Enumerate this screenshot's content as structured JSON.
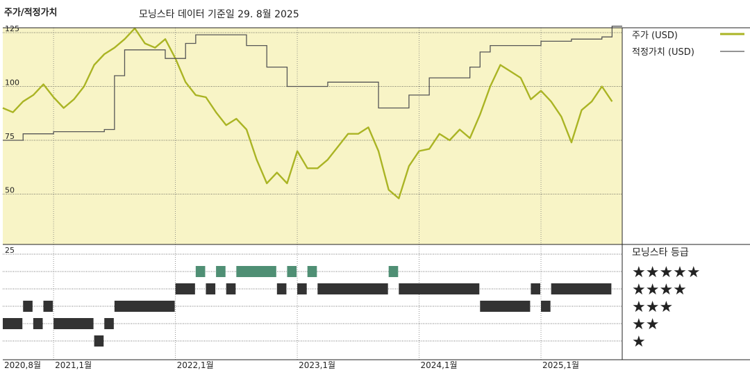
{
  "header": {
    "left_title": "주가/적정가치",
    "subtitle": "모닝스타 데이터 기준일 29. 8월 2025"
  },
  "colors": {
    "price_line": "#aab424",
    "fair_value_line": "#555555",
    "plot_background": "#f8f4c6",
    "rating_bar_dark": "#333333",
    "rating_bar_green": "#4f8f74",
    "gridline": "#444444"
  },
  "chart_data": [
    {
      "type": "line",
      "title": "",
      "ylabel": "",
      "xlabel": "",
      "ylim": [
        25,
        130
      ],
      "y_ticks": [
        125,
        100,
        75,
        50
      ],
      "x_range": [
        "2020-08",
        "2025-08"
      ],
      "x_tick_labels": [
        "2020,8월",
        "2021,1월",
        "2022,1월",
        "2023,1월",
        "2024,1월",
        "2025,1월"
      ],
      "grid": true,
      "legend_position": "right",
      "series": [
        {
          "name": "주가 (USD)",
          "points": [
            [
              "2020-08",
              90
            ],
            [
              "2020-09",
              88
            ],
            [
              "2020-10",
              93
            ],
            [
              "2020-11",
              96
            ],
            [
              "2020-12",
              101
            ],
            [
              "2021-01",
              95
            ],
            [
              "2021-02",
              90
            ],
            [
              "2021-03",
              94
            ],
            [
              "2021-04",
              100
            ],
            [
              "2021-05",
              110
            ],
            [
              "2021-06",
              115
            ],
            [
              "2021-07",
              118
            ],
            [
              "2021-08",
              122
            ],
            [
              "2021-09",
              127
            ],
            [
              "2021-10",
              120
            ],
            [
              "2021-11",
              118
            ],
            [
              "2021-12",
              122
            ],
            [
              "2022-01",
              113
            ],
            [
              "2022-02",
              102
            ],
            [
              "2022-03",
              96
            ],
            [
              "2022-04",
              95
            ],
            [
              "2022-05",
              88
            ],
            [
              "2022-06",
              82
            ],
            [
              "2022-07",
              85
            ],
            [
              "2022-08",
              80
            ],
            [
              "2022-09",
              66
            ],
            [
              "2022-10",
              55
            ],
            [
              "2022-11",
              60
            ],
            [
              "2022-12",
              55
            ],
            [
              "2023-01",
              70
            ],
            [
              "2023-02",
              62
            ],
            [
              "2023-03",
              62
            ],
            [
              "2023-04",
              66
            ],
            [
              "2023-05",
              72
            ],
            [
              "2023-06",
              78
            ],
            [
              "2023-07",
              78
            ],
            [
              "2023-08",
              81
            ],
            [
              "2023-09",
              70
            ],
            [
              "2023-10",
              52
            ],
            [
              "2023-11",
              48
            ],
            [
              "2023-12",
              63
            ],
            [
              "2024-01",
              70
            ],
            [
              "2024-02",
              71
            ],
            [
              "2024-03",
              78
            ],
            [
              "2024-04",
              75
            ],
            [
              "2024-05",
              80
            ],
            [
              "2024-06",
              76
            ],
            [
              "2024-07",
              87
            ],
            [
              "2024-08",
              100
            ],
            [
              "2024-09",
              110
            ],
            [
              "2024-10",
              107
            ],
            [
              "2024-11",
              104
            ],
            [
              "2024-12",
              94
            ],
            [
              "2025-01",
              98
            ],
            [
              "2025-02",
              93
            ],
            [
              "2025-03",
              86
            ],
            [
              "2025-04",
              74
            ],
            [
              "2025-05",
              89
            ],
            [
              "2025-06",
              93
            ],
            [
              "2025-07",
              100
            ],
            [
              "2025-08",
              93
            ]
          ]
        },
        {
          "name": "적정가치 (USD)",
          "step": true,
          "points": [
            [
              "2020-08",
              75
            ],
            [
              "2020-10",
              78
            ],
            [
              "2021-01",
              79
            ],
            [
              "2021-06",
              80
            ],
            [
              "2021-07",
              105
            ],
            [
              "2021-08",
              117
            ],
            [
              "2021-12",
              113
            ],
            [
              "2022-02",
              120
            ],
            [
              "2022-03",
              124
            ],
            [
              "2022-08",
              119
            ],
            [
              "2022-10",
              109
            ],
            [
              "2022-12",
              100
            ],
            [
              "2023-01",
              100
            ],
            [
              "2023-04",
              102
            ],
            [
              "2023-09",
              90
            ],
            [
              "2023-12",
              96
            ],
            [
              "2024-02",
              104
            ],
            [
              "2024-06",
              109
            ],
            [
              "2024-07",
              116
            ],
            [
              "2024-08",
              119
            ],
            [
              "2025-01",
              121
            ],
            [
              "2025-04",
              122
            ],
            [
              "2025-07",
              123
            ],
            [
              "2025-08",
              128
            ]
          ]
        }
      ]
    },
    {
      "type": "timeline",
      "title": "모닝스타 등급",
      "y_tick": "25",
      "levels": [
        "★★★★★",
        "★★★★",
        "★★★",
        "★★",
        "★"
      ],
      "segments": [
        {
          "stars": 2,
          "start": "2020-08",
          "end": "2020-10"
        },
        {
          "stars": 3,
          "start": "2020-10",
          "end": "2020-11"
        },
        {
          "stars": 2,
          "start": "2020-11",
          "end": "2020-12"
        },
        {
          "stars": 3,
          "start": "2020-12",
          "end": "2021-01"
        },
        {
          "stars": 2,
          "start": "2021-01",
          "end": "2021-05"
        },
        {
          "stars": 1,
          "start": "2021-05",
          "end": "2021-06"
        },
        {
          "stars": 2,
          "start": "2021-06",
          "end": "2021-07"
        },
        {
          "stars": 3,
          "start": "2021-07",
          "end": "2022-01"
        },
        {
          "stars": 4,
          "start": "2022-01",
          "end": "2022-03"
        },
        {
          "stars": 5,
          "start": "2022-03",
          "end": "2022-04"
        },
        {
          "stars": 4,
          "start": "2022-04",
          "end": "2022-05"
        },
        {
          "stars": 5,
          "start": "2022-05",
          "end": "2022-06"
        },
        {
          "stars": 4,
          "start": "2022-06",
          "end": "2022-07"
        },
        {
          "stars": 5,
          "start": "2022-07",
          "end": "2022-11"
        },
        {
          "stars": 4,
          "start": "2022-11",
          "end": "2022-12"
        },
        {
          "stars": 5,
          "start": "2022-12",
          "end": "2023-01"
        },
        {
          "stars": 4,
          "start": "2023-01",
          "end": "2023-02"
        },
        {
          "stars": 5,
          "start": "2023-02",
          "end": "2023-03"
        },
        {
          "stars": 4,
          "start": "2023-03",
          "end": "2023-10"
        },
        {
          "stars": 5,
          "start": "2023-10",
          "end": "2023-11"
        },
        {
          "stars": 4,
          "start": "2023-11",
          "end": "2024-07"
        },
        {
          "stars": 3,
          "start": "2024-07",
          "end": "2024-12"
        },
        {
          "stars": 4,
          "start": "2024-12",
          "end": "2025-01"
        },
        {
          "stars": 3,
          "start": "2025-01",
          "end": "2025-02"
        },
        {
          "stars": 4,
          "start": "2025-02",
          "end": "2025-08"
        }
      ]
    }
  ]
}
